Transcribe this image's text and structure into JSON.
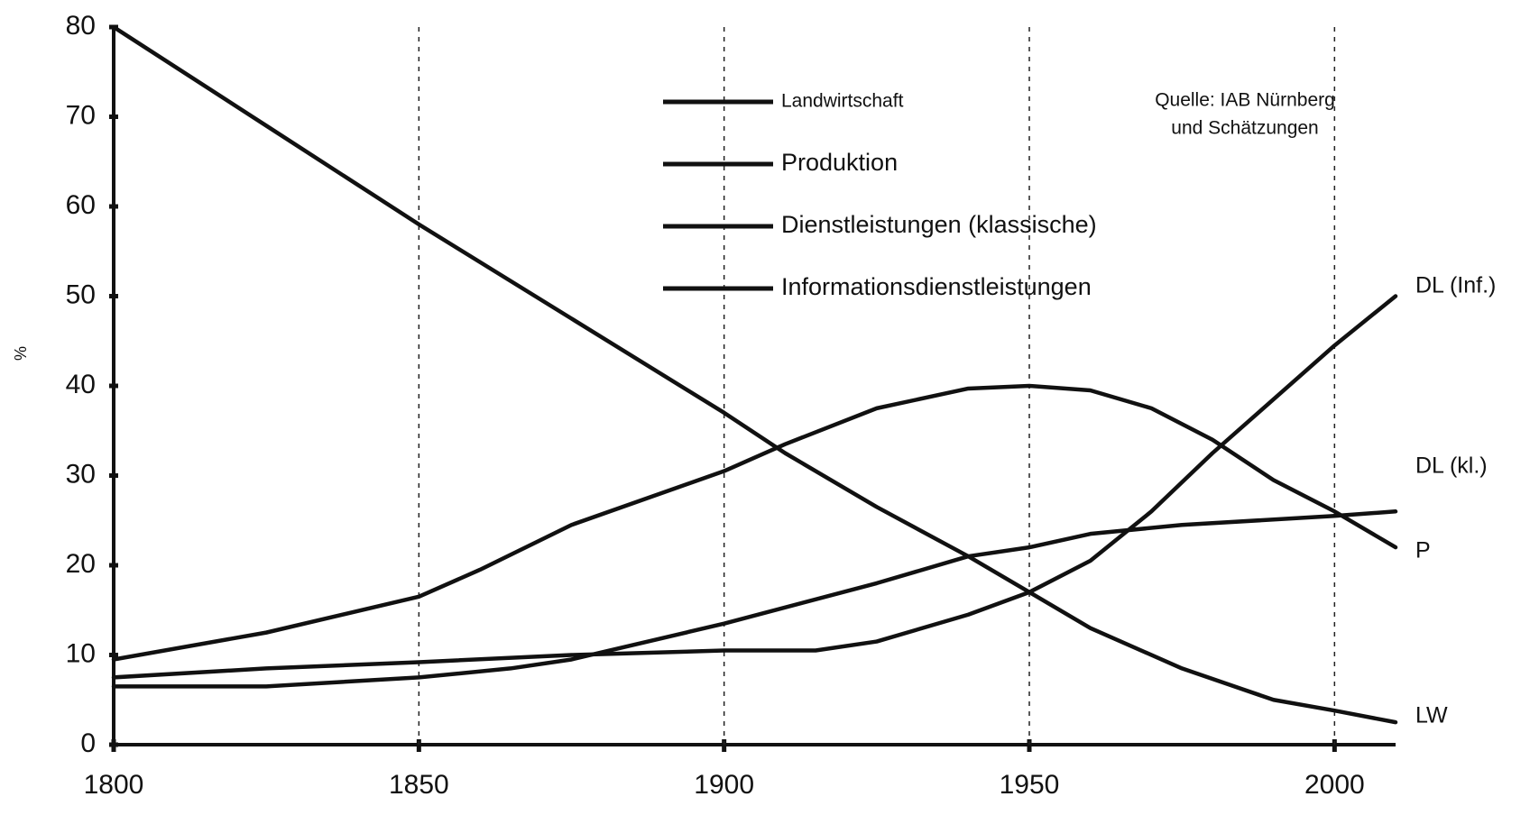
{
  "chart_data": {
    "type": "line",
    "y_label": "%",
    "source": [
      "Quelle: IAB Nürnberg",
      "und Schätzungen"
    ],
    "xlim": [
      1800,
      2010
    ],
    "ylim": [
      0,
      80
    ],
    "xticks": [
      1800,
      1850,
      1900,
      1950,
      2000
    ],
    "yticks": [
      0,
      10,
      20,
      30,
      40,
      50,
      60,
      70,
      80
    ],
    "grid": "x",
    "legend": "top-center",
    "series": [
      {
        "name": "Landwirtschaft",
        "end_label": "LW",
        "color": "#111111",
        "x": [
          1800,
          1825,
          1850,
          1875,
          1900,
          1910,
          1925,
          1940,
          1950,
          1960,
          1975,
          1990,
          2000,
          2010
        ],
        "values": [
          80,
          69,
          58,
          47.5,
          37,
          32.5,
          26.5,
          21,
          17,
          13,
          8.5,
          5,
          3.8,
          2.5
        ]
      },
      {
        "name": "Produktion",
        "end_label": "P",
        "color": "#111111",
        "x": [
          1800,
          1825,
          1850,
          1860,
          1875,
          1900,
          1910,
          1925,
          1940,
          1950,
          1960,
          1970,
          1980,
          1990,
          2000,
          2010
        ],
        "values": [
          9.5,
          12.5,
          16.5,
          19.5,
          24.5,
          30.5,
          33.5,
          37.5,
          39.7,
          40,
          39.5,
          37.5,
          34,
          29.5,
          26,
          22
        ]
      },
      {
        "name": "Dienstleistungen (klassische)",
        "end_label": "DL (kl.)",
        "color": "#111111",
        "x": [
          1800,
          1825,
          1850,
          1865,
          1875,
          1900,
          1925,
          1940,
          1950,
          1960,
          1975,
          2000,
          2010
        ],
        "values": [
          6.5,
          6.5,
          7.5,
          8.5,
          9.5,
          13.5,
          18,
          21,
          22,
          23.5,
          24.5,
          25.5,
          26
        ]
      },
      {
        "name": "Informationsdienstleistungen",
        "end_label": "DL (Inf.)",
        "color": "#111111",
        "x": [
          1800,
          1825,
          1850,
          1875,
          1900,
          1915,
          1925,
          1940,
          1950,
          1960,
          1970,
          1980,
          1990,
          2000,
          2010
        ],
        "values": [
          7.5,
          8.5,
          9.2,
          10,
          10.5,
          10.5,
          11.5,
          14.5,
          17,
          20.5,
          26,
          32.5,
          38.5,
          44.5,
          50
        ]
      }
    ]
  }
}
